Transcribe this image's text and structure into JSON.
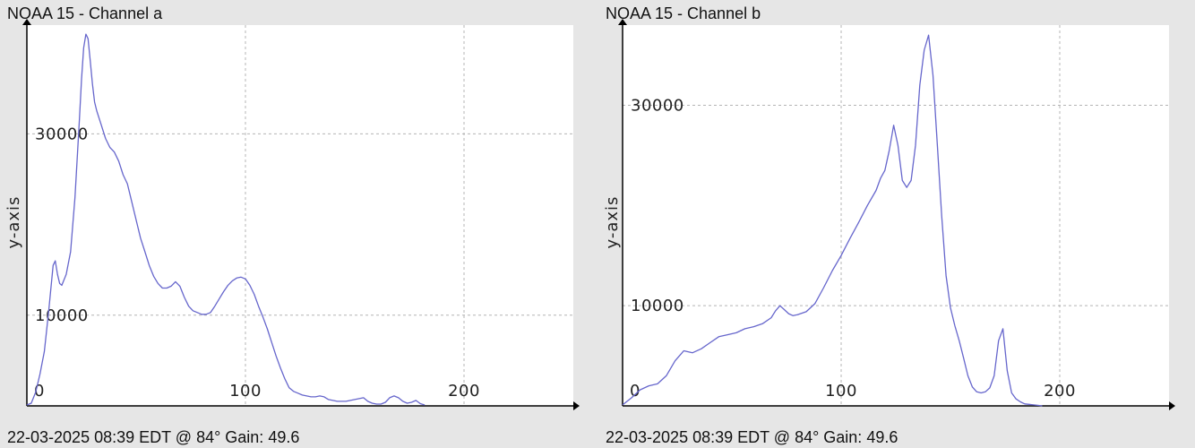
{
  "chart_data": [
    {
      "type": "line",
      "title": "NOAA 15 - Channel a",
      "footer": "22-03-2025 08:39 EDT @ 84° Gain: 49.6",
      "ylabel": "y-axis",
      "xlabel": "",
      "xlim": [
        0,
        250
      ],
      "ylim": [
        0,
        42000
      ],
      "x_ticks": [
        0,
        100,
        200
      ],
      "y_ticks": [
        10000,
        30000
      ],
      "grid": true,
      "line_color": "#6666cc",
      "x": [
        0,
        2,
        4,
        6,
        8,
        10,
        12,
        13,
        14,
        15,
        16,
        18,
        20,
        22,
        24,
        25,
        26,
        27,
        28,
        29,
        30,
        31,
        32,
        34,
        36,
        38,
        40,
        42,
        44,
        46,
        48,
        50,
        52,
        54,
        56,
        58,
        60,
        62,
        64,
        66,
        68,
        70,
        72,
        74,
        76,
        78,
        80,
        82,
        84,
        86,
        88,
        90,
        92,
        94,
        96,
        98,
        100,
        102,
        104,
        106,
        108,
        110,
        112,
        114,
        116,
        118,
        120,
        122,
        124,
        126,
        128,
        130,
        132,
        134,
        136,
        138,
        140,
        142,
        144,
        146,
        148,
        150,
        152,
        154,
        156,
        158,
        160,
        162,
        164,
        166,
        168,
        170,
        172,
        174,
        176,
        178,
        180,
        182
      ],
      "y": [
        100,
        300,
        1500,
        3500,
        6000,
        10500,
        15500,
        16000,
        14500,
        13500,
        13300,
        14500,
        17000,
        23000,
        31500,
        36000,
        39500,
        41000,
        40500,
        38000,
        35500,
        33500,
        32500,
        31000,
        29500,
        28500,
        28000,
        27000,
        25500,
        24500,
        22500,
        20500,
        18500,
        17000,
        15500,
        14300,
        13500,
        13000,
        13000,
        13200,
        13700,
        13200,
        12000,
        11000,
        10500,
        10300,
        10100,
        10100,
        10300,
        11000,
        11800,
        12600,
        13300,
        13800,
        14100,
        14200,
        14000,
        13300,
        12300,
        11000,
        9800,
        8500,
        7000,
        5500,
        4200,
        3000,
        2000,
        1600,
        1400,
        1200,
        1100,
        1000,
        1000,
        1100,
        1000,
        700,
        600,
        500,
        500,
        500,
        600,
        700,
        800,
        900,
        500,
        300,
        200,
        200,
        400,
        900,
        1100,
        900,
        500,
        300,
        400,
        600,
        250,
        100
      ]
    },
    {
      "type": "line",
      "title": "NOAA 15 - Channel b",
      "footer": "22-03-2025 08:39 EDT @ 84° Gain: 49.6",
      "ylabel": "y-axis",
      "xlabel": "",
      "xlim": [
        0,
        250
      ],
      "ylim": [
        0,
        38000
      ],
      "x_ticks": [
        0,
        100,
        200
      ],
      "y_ticks": [
        10000,
        30000
      ],
      "grid": true,
      "line_color": "#6666cc",
      "x": [
        0,
        4,
        8,
        12,
        16,
        20,
        24,
        28,
        32,
        36,
        40,
        44,
        48,
        52,
        56,
        60,
        64,
        68,
        70,
        72,
        74,
        76,
        78,
        80,
        84,
        88,
        92,
        96,
        100,
        104,
        108,
        112,
        116,
        118,
        120,
        122,
        124,
        126,
        128,
        130,
        132,
        134,
        136,
        138,
        140,
        142,
        144,
        146,
        148,
        150,
        152,
        154,
        156,
        158,
        160,
        162,
        164,
        166,
        168,
        170,
        172,
        174,
        176,
        178,
        180,
        182,
        184,
        186,
        188,
        190,
        192
      ],
      "y": [
        100,
        800,
        1600,
        2000,
        2200,
        3000,
        4500,
        5500,
        5300,
        5700,
        6300,
        6900,
        7100,
        7300,
        7700,
        7900,
        8200,
        8800,
        9500,
        10000,
        9600,
        9200,
        9000,
        9100,
        9400,
        10200,
        11800,
        13500,
        15000,
        16700,
        18300,
        20000,
        21500,
        22700,
        23500,
        25500,
        28000,
        26000,
        22500,
        21800,
        22500,
        26000,
        32000,
        35500,
        37000,
        33000,
        26000,
        19000,
        13000,
        9800,
        8000,
        6500,
        4800,
        3000,
        1900,
        1400,
        1300,
        1400,
        1800,
        3000,
        6500,
        7700,
        3500,
        1300,
        700,
        400,
        200,
        150,
        100,
        50,
        0
      ]
    }
  ]
}
